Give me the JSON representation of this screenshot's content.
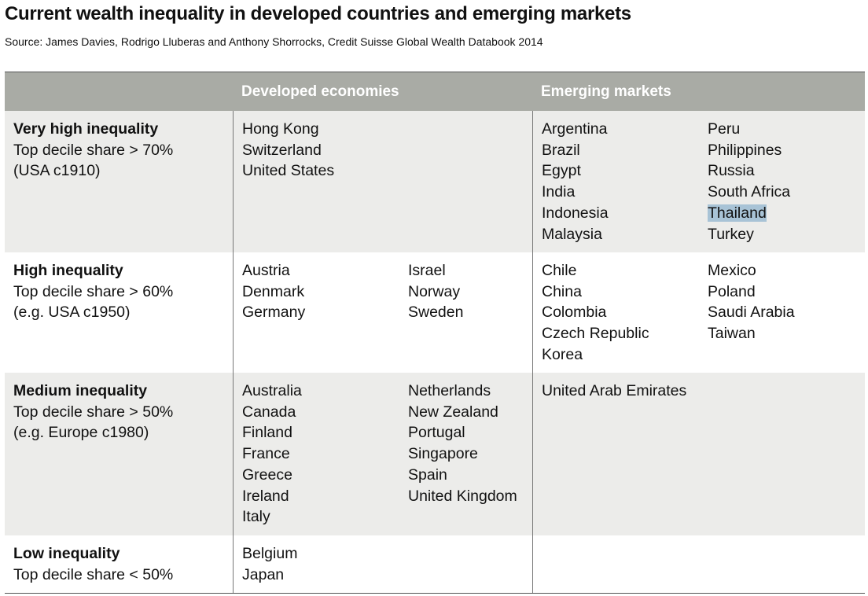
{
  "title": "Current wealth inequality in developed countries and emerging markets",
  "source": "Source: James Davies, Rodrigo Lluberas and Anthony Shorrocks, Credit Suisse Global Wealth Databook 2014",
  "header": {
    "developed": "Developed economies",
    "emerging": "Emerging markets"
  },
  "rows": [
    {
      "category": "Very high inequality",
      "share": "Top decile share > 70%",
      "example": "(USA c1910)",
      "developed": {
        "col1": [
          "Hong Kong",
          "Switzerland",
          "United States"
        ],
        "col2": []
      },
      "emerging": {
        "col1": [
          "Argentina",
          "Brazil",
          "Egypt",
          "India",
          "Indonesia",
          "Malaysia"
        ],
        "col2": [
          "Peru",
          "Philippines",
          "Russia",
          "South Africa",
          "Thailand",
          "Turkey"
        ]
      }
    },
    {
      "category": "High inequality",
      "share": "Top decile share > 60%",
      "example": "(e.g. USA c1950)",
      "developed": {
        "col1": [
          "Austria",
          "Denmark",
          "Germany"
        ],
        "col2": [
          "Israel",
          "Norway",
          "Sweden"
        ]
      },
      "emerging": {
        "col1": [
          "Chile",
          "China",
          "Colombia",
          "Czech Republic",
          "Korea"
        ],
        "col2": [
          "Mexico",
          "Poland",
          "Saudi Arabia",
          "Taiwan"
        ]
      }
    },
    {
      "category": "Medium inequality",
      "share": "Top decile share > 50%",
      "example": "(e.g. Europe c1980)",
      "developed": {
        "col1": [
          "Australia",
          "Canada",
          "Finland",
          "France",
          "Greece",
          "Ireland",
          "Italy"
        ],
        "col2": [
          "Netherlands",
          "New Zealand",
          "Portugal",
          "Singapore",
          "Spain",
          "United Kingdom"
        ]
      },
      "emerging": {
        "col1": [
          "United Arab Emirates"
        ],
        "col2": []
      }
    },
    {
      "category": "Low inequality",
      "share": "Top decile share < 50%",
      "example": "",
      "developed": {
        "col1": [
          "Belgium",
          "Japan"
        ],
        "col2": []
      },
      "emerging": {
        "col1": [],
        "col2": []
      }
    }
  ],
  "highlight": {
    "text": "Thailand",
    "color": "#a8c3d6"
  }
}
